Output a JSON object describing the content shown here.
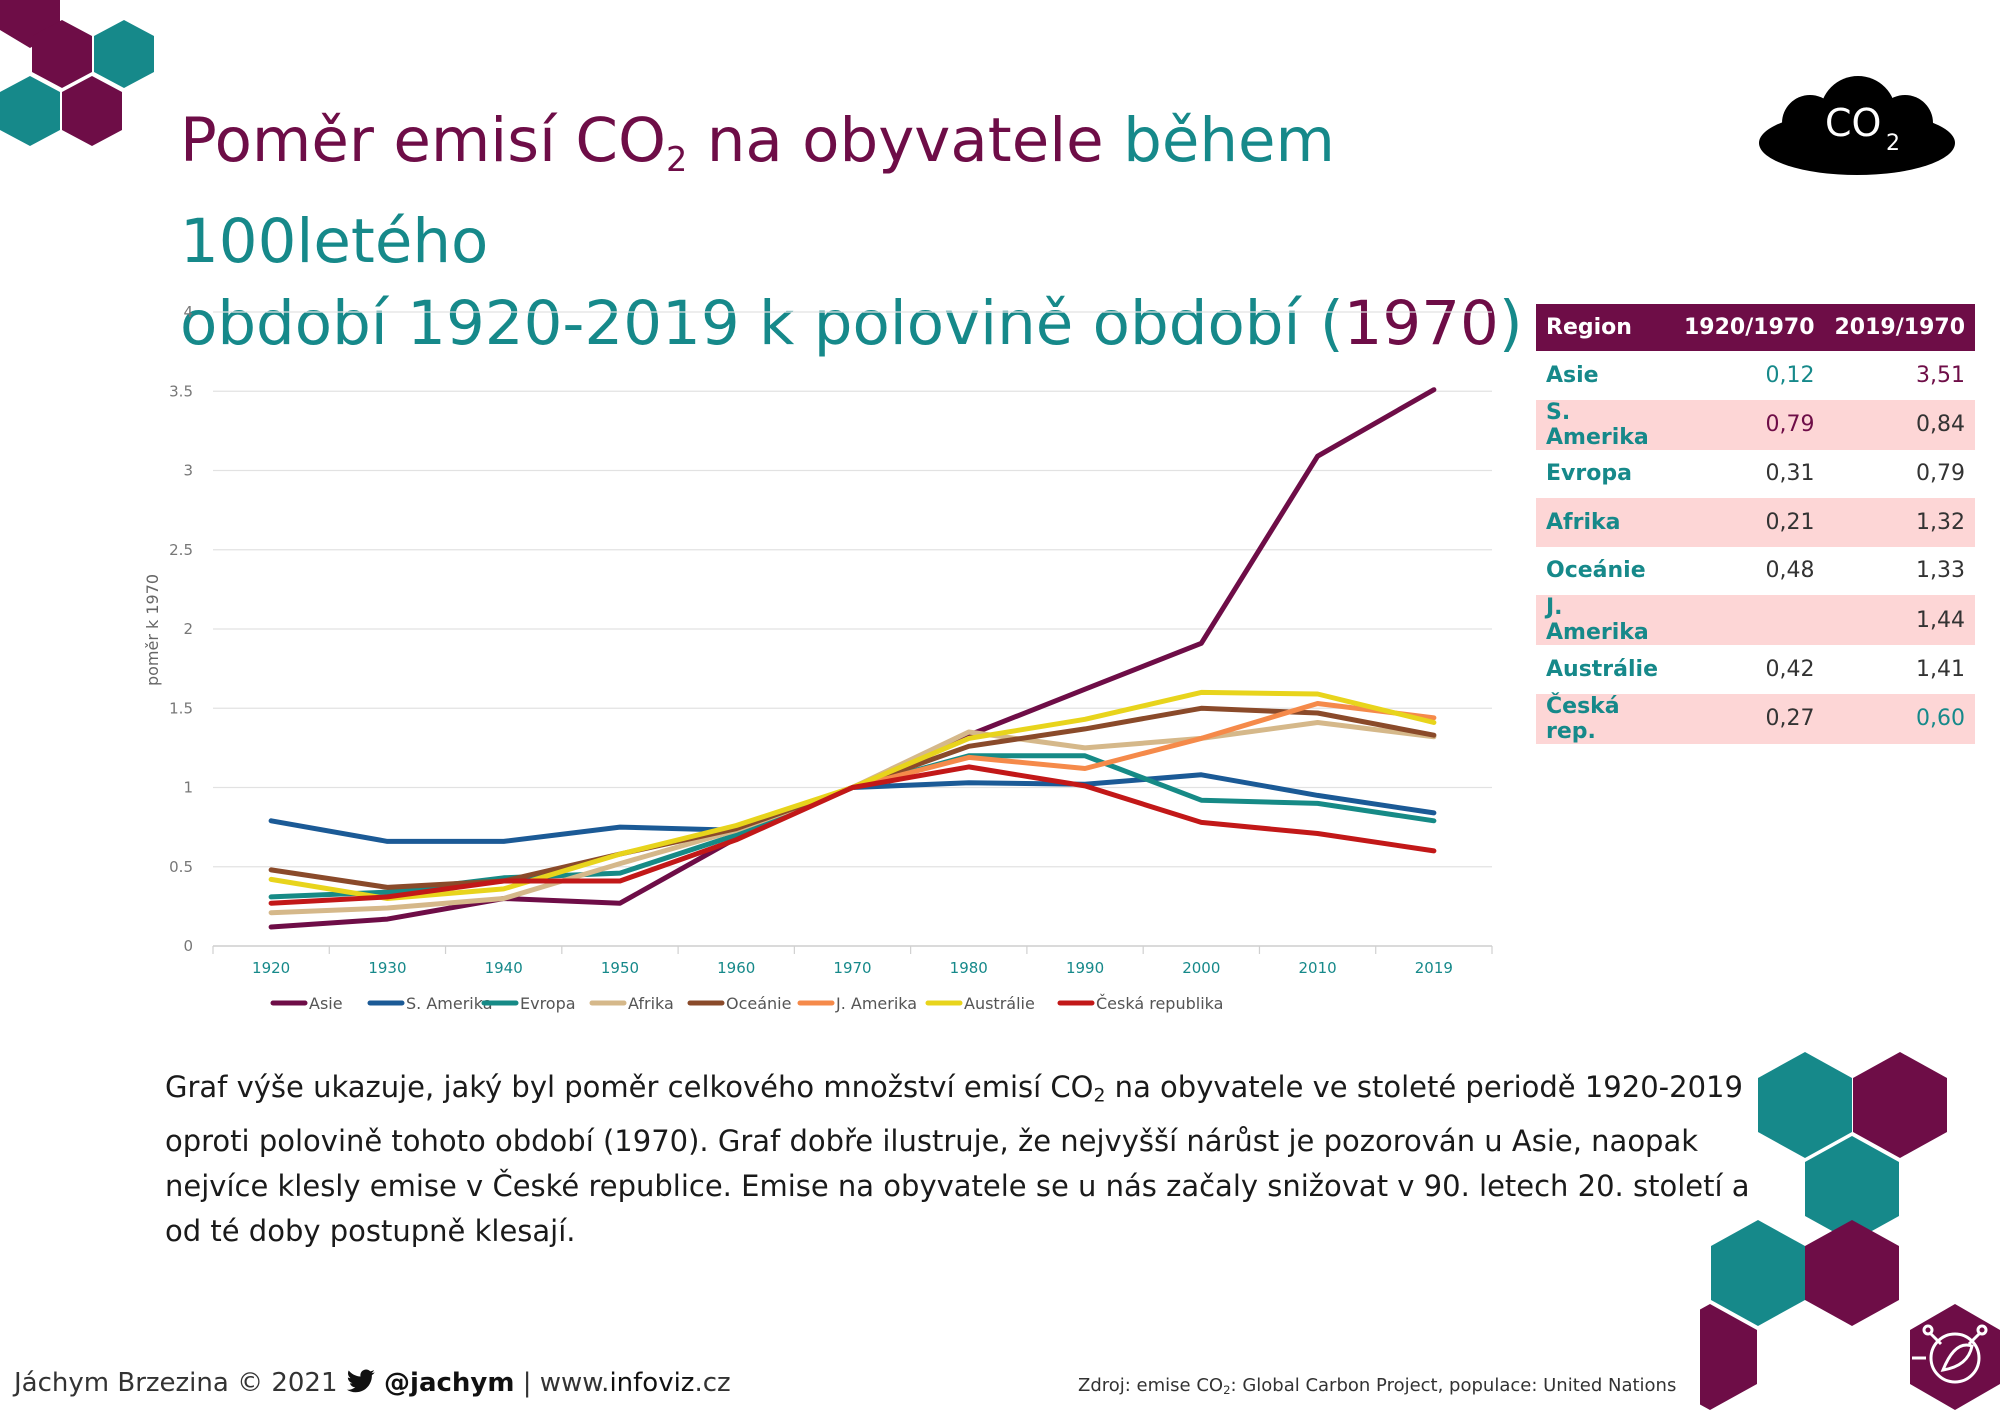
{
  "title": {
    "part1": "Poměr emisí CO",
    "part1_sub": "2",
    "part2": " na obyvatele",
    "part3": " během 100letého",
    "part4": "období 1920-2019 k polovině období (",
    "year": "1970",
    "part5": ")"
  },
  "co2_badge": {
    "text": "CO",
    "sub": "2"
  },
  "colors": {
    "purple": "#6e0d47",
    "teal": "#16898a",
    "pink_row": "#fdd6d6"
  },
  "chart_data": {
    "type": "line",
    "title": "",
    "xlabel": "",
    "ylabel": "poměr k 1970",
    "x": [
      "1920",
      "1930",
      "1940",
      "1950",
      "1960",
      "1970",
      "1980",
      "1990",
      "2000",
      "2010",
      "2019"
    ],
    "ylim": [
      0,
      4
    ],
    "yticks": [
      "0",
      "0.5",
      "1",
      "1.5",
      "2",
      "2.5",
      "3",
      "3.5",
      "4"
    ],
    "grid": true,
    "legend": "bottom",
    "series": [
      {
        "name": "Asie",
        "color": "#6e0d47",
        "values": [
          0.12,
          0.17,
          0.3,
          0.27,
          0.68,
          1.0,
          1.33,
          1.62,
          1.91,
          3.09,
          3.51
        ]
      },
      {
        "name": "S. Amerika",
        "color": "#1b5a96",
        "values": [
          0.79,
          0.66,
          0.66,
          0.75,
          0.73,
          1.0,
          1.03,
          1.02,
          1.08,
          0.95,
          0.84
        ]
      },
      {
        "name": "Evropa",
        "color": "#168a86",
        "values": [
          0.31,
          0.34,
          0.43,
          0.46,
          0.7,
          1.0,
          1.2,
          1.2,
          0.92,
          0.9,
          0.79
        ]
      },
      {
        "name": "Afrika",
        "color": "#d5b88a",
        "values": [
          0.21,
          0.24,
          0.3,
          0.52,
          0.73,
          1.0,
          1.35,
          1.25,
          1.31,
          1.41,
          1.32
        ]
      },
      {
        "name": "Oceánie",
        "color": "#8a4a2a",
        "values": [
          0.48,
          0.37,
          0.41,
          0.58,
          0.74,
          1.0,
          1.26,
          1.37,
          1.5,
          1.47,
          1.33
        ]
      },
      {
        "name": "J. Amerika",
        "color": "#f58a4a",
        "values": [
          null,
          null,
          null,
          null,
          null,
          1.0,
          1.19,
          1.12,
          1.31,
          1.53,
          1.44
        ]
      },
      {
        "name": "Austrálie",
        "color": "#e8d41c",
        "values": [
          0.42,
          0.3,
          0.36,
          0.58,
          0.76,
          1.0,
          1.31,
          1.43,
          1.6,
          1.59,
          1.41
        ]
      },
      {
        "name": "Česká republika",
        "color": "#c21818",
        "values": [
          0.27,
          0.31,
          0.41,
          0.41,
          0.67,
          1.0,
          1.13,
          1.01,
          0.78,
          0.71,
          0.6
        ]
      }
    ]
  },
  "table": {
    "headers": [
      "Region",
      "1920/1970",
      "2019/1970"
    ],
    "rows": [
      {
        "region": "Asie",
        "v1920": "0,12",
        "v2019": "3,51"
      },
      {
        "region": "S. Amerika",
        "v1920": "0,79",
        "v2019": "0,84"
      },
      {
        "region": "Evropa",
        "v1920": "0,31",
        "v2019": "0,79"
      },
      {
        "region": "Afrika",
        "v1920": "0,21",
        "v2019": "1,32"
      },
      {
        "region": "Oceánie",
        "v1920": "0,48",
        "v2019": "1,33"
      },
      {
        "region": "J. Amerika",
        "v1920": "",
        "v2019": "1,44"
      },
      {
        "region": "Austrálie",
        "v1920": "0,42",
        "v2019": "1,41"
      },
      {
        "region": "Česká rep.",
        "v1920": "0,27",
        "v2019": "0,60"
      }
    ]
  },
  "description": {
    "a": "Graf výše ukazuje, jaký byl poměr celkového množství emisí CO",
    "sub": "2",
    "b": " na obyvatele ve stoleté periodě 1920-2019 oproti polovině tohoto období (1970). Graf dobře ilustruje, že nejvyšší nárůst je pozorován u Asie, naopak nejvíce klesly emise v České republice. Emise na obyvatele se u nás začaly snižovat v 90. letech 20. století a od té doby postupně klesají."
  },
  "footer": {
    "author": "Jáchym Brzezina © 2021",
    "handle": "@jachym",
    "sep": " | ",
    "site_prefix": "www.",
    "site_bold": "infoviz",
    "site_suffix": ".cz",
    "source_a": "Zdroj: emise CO",
    "source_sub": "2",
    "source_b": ": Global Carbon Project, populace: United Nations"
  }
}
